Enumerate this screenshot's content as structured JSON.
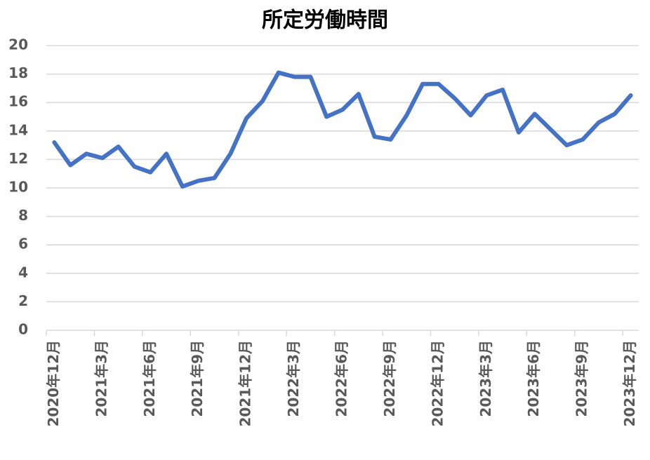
{
  "chart_data": {
    "type": "line",
    "title": "所定労働時間",
    "categories": [
      "2020年12月",
      null,
      null,
      "2021年3月",
      null,
      null,
      "2021年6月",
      null,
      null,
      "2021年9月",
      null,
      null,
      "2021年12月",
      null,
      null,
      "2022年3月",
      null,
      null,
      "2022年6月",
      null,
      null,
      "2022年9月",
      null,
      null,
      "2022年12月",
      null,
      null,
      "2023年3月",
      null,
      null,
      "2023年6月",
      null,
      null,
      "2023年9月",
      null,
      null,
      "2023年12月"
    ],
    "values": [
      13.2,
      11.6,
      12.4,
      12.1,
      12.9,
      11.5,
      11.1,
      12.4,
      10.1,
      10.5,
      10.7,
      12.4,
      14.9,
      16.1,
      18.1,
      17.8,
      17.8,
      15.0,
      15.5,
      16.6,
      13.6,
      13.4,
      15.1,
      17.3,
      17.3,
      16.3,
      15.1,
      16.5,
      16.9,
      13.9,
      15.2,
      14.1,
      13.0,
      13.4,
      14.6,
      15.2,
      16.5
    ],
    "color": "#4472c4",
    "ylim": [
      0,
      20
    ],
    "yticks": [
      0,
      2,
      4,
      6,
      8,
      10,
      12,
      14,
      16,
      18,
      20
    ],
    "grid": true
  }
}
